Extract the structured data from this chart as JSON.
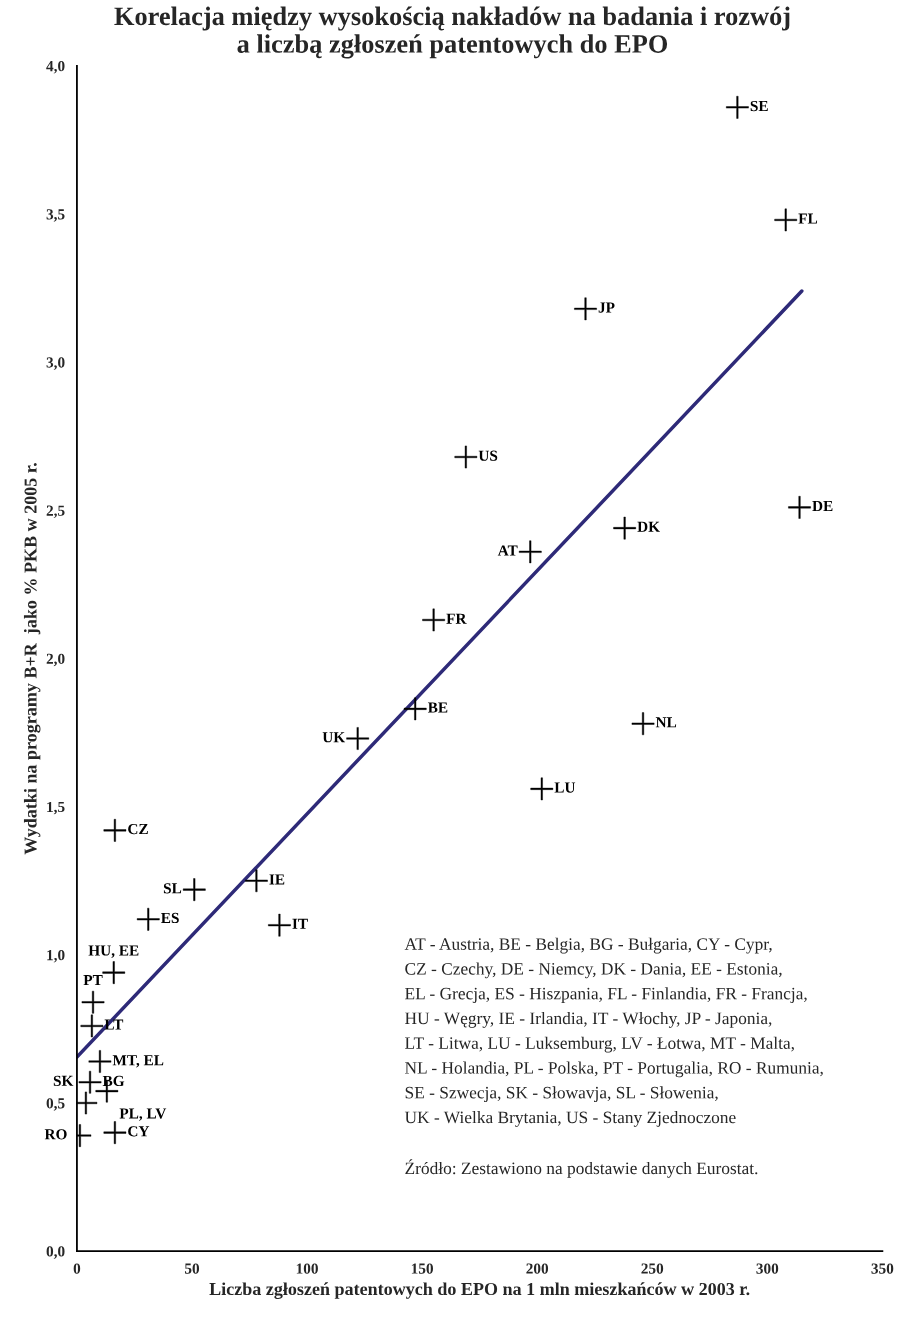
{
  "chart_data": {
    "type": "scatter",
    "title": "Korelacja między wysokością nakładów na badania i rozwój\na liczbą zgłoszeń patentowych do EPO",
    "xlabel": "Liczba zgłoszeń patentowych do EPO na 1 mln mieszkańców w 2003 r.",
    "ylabel": "Wydatki na programy B+R  jako % PKB w 2005 r.",
    "xlim": [
      0,
      350
    ],
    "xticks": [
      0,
      50,
      100,
      150,
      200,
      250,
      300,
      350
    ],
    "ylim": [
      0,
      4
    ],
    "yticks": [
      {
        "value": 0,
        "label": "0,0"
      },
      {
        "value": 0.5,
        "label": "0,5"
      },
      {
        "value": 1,
        "label": "1,0"
      },
      {
        "value": 1.5,
        "label": "1,5"
      },
      {
        "value": 2,
        "label": "2,0"
      },
      {
        "value": 2.5,
        "label": "2,5"
      },
      {
        "value": 3,
        "label": "3,0"
      },
      {
        "value": 3.5,
        "label": "3,5"
      },
      {
        "value": 4,
        "label": "4,0"
      }
    ],
    "grid": false,
    "legend": false,
    "series": [
      {
        "color": "#000000",
        "marker": "cross",
        "x": [
          287,
          308,
          221,
          169,
          314,
          238,
          197,
          155,
          147,
          122,
          246,
          202,
          16.5,
          51,
          78,
          31,
          88,
          16,
          7,
          6.5,
          10,
          5.7,
          13,
          3.9,
          1.3,
          16.5
        ],
        "values": [
          3.86,
          3.48,
          3.18,
          2.68,
          2.51,
          2.44,
          2.36,
          2.13,
          1.83,
          1.73,
          1.78,
          1.56,
          1.42,
          1.22,
          1.25,
          1.12,
          1.1,
          0.94,
          0.84,
          0.76,
          0.64,
          0.57,
          0.54,
          0.5,
          0.39,
          0.4
        ],
        "value_labels": [
          "SE",
          "FL",
          "JP",
          "US",
          "DE",
          "DK",
          "AT",
          "FR",
          "BE",
          "UK",
          "NL",
          "LU",
          "CZ",
          "SL",
          "IE",
          "ES",
          "IT",
          "HU, EE",
          "PT",
          "LT",
          "MT, EL",
          "BG",
          "PL, LV",
          "SK",
          "RO",
          "CY"
        ]
      },
      {
        "type": "line",
        "color": "#2e2a78",
        "x": [
          0,
          315
        ],
        "values": [
          0.655,
          3.24
        ]
      }
    ],
    "annotations": [
      "AT - Austria, BE - Belgia, BG - Bułgaria, CY - Cypr,",
      "CZ - Czechy, DE - Niemcy, DK - Dania, EE - Estonia,",
      "EL - Grecja, ES - Hiszpania, FL - Finlandia, FR - Francja,",
      "HU - Węgry, IE - Irlandia, IT - Włochy, JP - Japonia,",
      "LT - Litwa, LU - Luksemburg, LV - Łotwa, MT - Malta,",
      "NL - Holandia, PL - Polska, PT - Portugalia, RO - Rumunia,",
      "SE - Szwecja, SK - Słowavja, SL - Słowenia,",
      "UK - Wielka Brytania, US - Stany Zjednoczone",
      "Źródło: Zestawiono na podstawie danych Eurostat."
    ]
  }
}
